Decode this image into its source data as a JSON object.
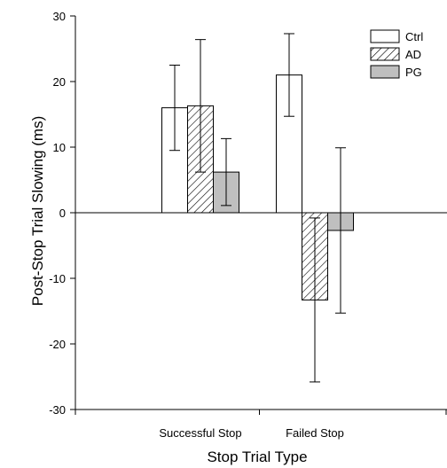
{
  "chart_data": {
    "type": "bar",
    "xlabel": "Stop Trial Type",
    "ylabel": "Post-Stop Trial Slowing (ms)",
    "ylim": [
      -30,
      30
    ],
    "yticks": [
      -30,
      -20,
      -10,
      0,
      10,
      20,
      30
    ],
    "categories": [
      "Successful Stop",
      "Failed Stop"
    ],
    "series": [
      {
        "name": "Ctrl",
        "pattern": "white",
        "values": [
          16.0,
          21.0
        ],
        "error": [
          6.5,
          6.3
        ]
      },
      {
        "name": "AD",
        "pattern": "hatched",
        "values": [
          16.3,
          -13.3
        ],
        "error": [
          10.1,
          12.5
        ]
      },
      {
        "name": "PG",
        "pattern": "gray",
        "values": [
          6.2,
          -2.7
        ],
        "error": [
          5.1,
          12.6
        ]
      }
    ],
    "legend_position": "top-right",
    "colors": {
      "gray_fill": "#bfbfbf",
      "white_fill": "#ffffff",
      "stroke": "#000000"
    }
  }
}
